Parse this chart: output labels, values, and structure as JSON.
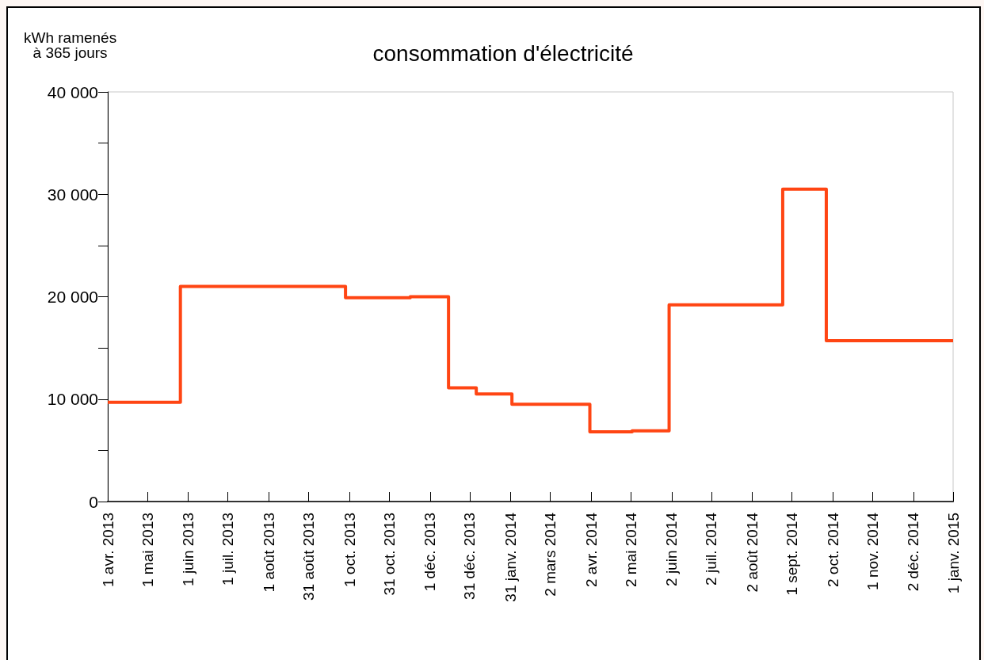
{
  "chart_data": {
    "type": "step",
    "title": "consommation d'électricité",
    "ylabel": "kWh ramenés\nà 365 jours",
    "x": [
      "2013-04-01",
      "2013-05-26",
      "2013-09-28",
      "2013-11-16",
      "2013-12-15",
      "2014-01-05",
      "2014-02-01",
      "2014-04-01",
      "2014-05-03",
      "2014-05-31",
      "2014-08-25",
      "2014-09-27",
      "2015-01-01"
    ],
    "values": [
      9700,
      21000,
      19900,
      20000,
      11100,
      10500,
      9500,
      6800,
      6900,
      19200,
      30500,
      15700,
      15700
    ],
    "color": "#ff4513",
    "xlim": [
      "2013-04-01",
      "2015-01-01"
    ],
    "xticks": [
      {
        "value": "2013-04-01",
        "label": "1 avr. 2013"
      },
      {
        "value": "2013-05-01",
        "label": "1 mai 2013"
      },
      {
        "value": "2013-06-01",
        "label": "1 juin 2013"
      },
      {
        "value": "2013-07-01",
        "label": "1 juil. 2013"
      },
      {
        "value": "2013-08-01",
        "label": "1 août 2013"
      },
      {
        "value": "2013-08-31",
        "label": "31 août 2013"
      },
      {
        "value": "2013-10-01",
        "label": "1 oct. 2013"
      },
      {
        "value": "2013-10-31",
        "label": "31 oct. 2013"
      },
      {
        "value": "2013-12-01",
        "label": "1 déc. 2013"
      },
      {
        "value": "2013-12-31",
        "label": "31 déc. 2013"
      },
      {
        "value": "2014-01-31",
        "label": "31 janv. 2014"
      },
      {
        "value": "2014-03-02",
        "label": "2 mars 2014"
      },
      {
        "value": "2014-04-02",
        "label": "2 avr. 2014"
      },
      {
        "value": "2014-05-02",
        "label": "2 mai 2014"
      },
      {
        "value": "2014-06-02",
        "label": "2 juin 2014"
      },
      {
        "value": "2014-07-02",
        "label": "2 juil. 2014"
      },
      {
        "value": "2014-08-02",
        "label": "2 août 2014"
      },
      {
        "value": "2014-09-01",
        "label": "1 sept. 2014"
      },
      {
        "value": "2014-10-02",
        "label": "2 oct. 2014"
      },
      {
        "value": "2014-11-01",
        "label": "1 nov. 2014"
      },
      {
        "value": "2014-12-02",
        "label": "2 déc. 2014"
      },
      {
        "value": "2015-01-01",
        "label": "1 janv. 2015"
      }
    ],
    "ylim": [
      0,
      40000
    ],
    "yticks": [
      0,
      {
        "value": 5000,
        "label": null
      },
      {
        "value": 10000,
        "label": "10 000"
      },
      {
        "value": 15000,
        "label": null
      },
      {
        "value": 20000,
        "label": "20 000"
      },
      {
        "value": 25000,
        "label": null
      },
      {
        "value": 30000,
        "label": "30 000"
      },
      {
        "value": 35000,
        "label": null
      },
      {
        "value": 40000,
        "label": "40 000"
      }
    ]
  }
}
